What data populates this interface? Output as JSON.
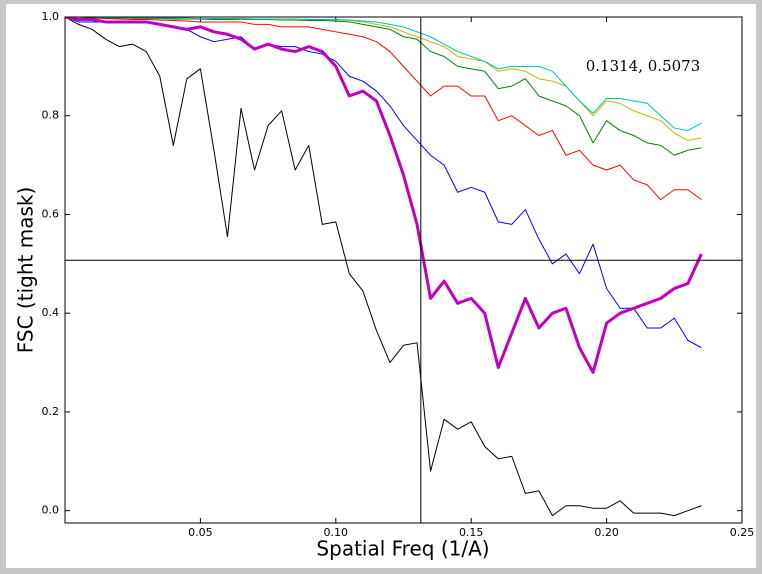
{
  "chart_data": {
    "type": "line",
    "xlabel": "Spatial Freq (1/A)",
    "ylabel": "FSC (tight mask)",
    "annotation": "0.1314, 0.5073",
    "crosshair": {
      "x": 0.1314,
      "y": 0.5073,
      "color": "#000000"
    },
    "xlim": [
      0,
      0.25
    ],
    "ylim": [
      -0.025,
      1.0
    ],
    "xticks": [
      0.05,
      {
        "value": 0.1,
        "label": "0.10"
      },
      0.15,
      {
        "value": 0.2,
        "label": "0.20"
      },
      0.25
    ],
    "yticks": [
      {
        "value": 0,
        "label": "0.0"
      },
      0.2,
      0.4,
      0.6,
      0.8,
      {
        "value": 1,
        "label": "1.0"
      }
    ],
    "grid": false,
    "x": [
      0,
      0.005,
      0.01,
      0.015,
      0.02,
      0.025,
      0.03,
      0.035,
      0.04,
      0.045,
      0.05,
      0.055,
      0.06,
      0.065,
      0.07,
      0.075,
      0.08,
      0.085,
      0.09,
      0.095,
      0.1,
      0.105,
      0.11,
      0.115,
      0.12,
      0.125,
      0.13,
      0.135,
      0.14,
      0.145,
      0.15,
      0.155,
      0.16,
      0.165,
      0.17,
      0.175,
      0.18,
      0.185,
      0.19,
      0.195,
      0.2,
      0.205,
      0.21,
      0.215,
      0.22,
      0.225,
      0.23,
      0.235
    ],
    "series": [
      {
        "color": "#000000",
        "line_width": 1,
        "values": [
          1.0,
          0.985,
          0.975,
          0.955,
          0.94,
          0.945,
          0.93,
          0.88,
          0.74,
          0.875,
          0.895,
          0.73,
          0.555,
          0.815,
          0.69,
          0.78,
          0.81,
          0.69,
          0.74,
          0.58,
          0.585,
          0.48,
          0.445,
          0.365,
          0.3,
          0.335,
          0.34,
          0.08,
          0.185,
          0.165,
          0.18,
          0.13,
          0.105,
          0.11,
          0.035,
          0.04,
          -0.01,
          0.01,
          0.01,
          0.005,
          0.005,
          0.02,
          -0.005,
          -0.005,
          -0.005,
          -0.01,
          0.0,
          0.01
        ]
      },
      {
        "color": "#0000ff",
        "line_width": 1,
        "values": [
          1.0,
          0.99,
          0.99,
          0.99,
          0.99,
          0.99,
          0.99,
          0.985,
          0.98,
          0.975,
          0.96,
          0.95,
          0.955,
          0.96,
          0.935,
          0.945,
          0.94,
          0.94,
          0.93,
          0.925,
          0.91,
          0.88,
          0.87,
          0.85,
          0.82,
          0.78,
          0.75,
          0.72,
          0.7,
          0.645,
          0.655,
          0.645,
          0.585,
          0.58,
          0.61,
          0.55,
          0.5,
          0.52,
          0.48,
          0.54,
          0.45,
          0.41,
          0.41,
          0.37,
          0.37,
          0.39,
          0.345,
          0.33
        ]
      },
      {
        "color": "#ff0000",
        "line_width": 1,
        "values": [
          1.0,
          1.0,
          0.998,
          0.997,
          0.996,
          0.995,
          0.995,
          0.994,
          0.993,
          0.992,
          0.99,
          0.99,
          0.99,
          0.99,
          0.985,
          0.985,
          0.98,
          0.98,
          0.98,
          0.975,
          0.97,
          0.965,
          0.96,
          0.95,
          0.93,
          0.9,
          0.87,
          0.84,
          0.86,
          0.86,
          0.84,
          0.84,
          0.79,
          0.8,
          0.78,
          0.76,
          0.77,
          0.72,
          0.73,
          0.7,
          0.69,
          0.7,
          0.67,
          0.66,
          0.63,
          0.65,
          0.65,
          0.63
        ]
      },
      {
        "color": "#008000",
        "line_width": 1,
        "values": [
          1.0,
          1.0,
          0.999,
          0.998,
          0.998,
          0.997,
          0.997,
          0.997,
          0.996,
          0.996,
          0.996,
          0.995,
          0.995,
          0.995,
          0.995,
          0.995,
          0.994,
          0.994,
          0.993,
          0.993,
          0.992,
          0.99,
          0.985,
          0.98,
          0.975,
          0.96,
          0.955,
          0.93,
          0.92,
          0.9,
          0.895,
          0.89,
          0.855,
          0.86,
          0.875,
          0.84,
          0.83,
          0.82,
          0.8,
          0.745,
          0.79,
          0.77,
          0.76,
          0.745,
          0.74,
          0.72,
          0.73,
          0.735
        ]
      },
      {
        "color": "#c8b400",
        "line_width": 1,
        "values": [
          1.0,
          1.0,
          1.0,
          0.999,
          0.999,
          0.998,
          0.998,
          0.998,
          0.998,
          0.997,
          0.997,
          0.997,
          0.997,
          0.996,
          0.996,
          0.996,
          0.995,
          0.995,
          0.995,
          0.995,
          0.994,
          0.993,
          0.99,
          0.985,
          0.98,
          0.97,
          0.96,
          0.95,
          0.94,
          0.92,
          0.915,
          0.91,
          0.89,
          0.895,
          0.89,
          0.875,
          0.87,
          0.86,
          0.83,
          0.8,
          0.83,
          0.825,
          0.81,
          0.8,
          0.79,
          0.765,
          0.75,
          0.755
        ]
      },
      {
        "color": "#00bfbf",
        "line_width": 1,
        "values": [
          1.0,
          1.0,
          1.0,
          0.999,
          0.999,
          0.999,
          0.998,
          0.998,
          0.998,
          0.998,
          0.997,
          0.997,
          0.997,
          0.997,
          0.996,
          0.996,
          0.996,
          0.996,
          0.995,
          0.995,
          0.995,
          0.994,
          0.992,
          0.99,
          0.985,
          0.98,
          0.97,
          0.96,
          0.945,
          0.93,
          0.92,
          0.91,
          0.895,
          0.9,
          0.9,
          0.9,
          0.89,
          0.86,
          0.83,
          0.805,
          0.835,
          0.835,
          0.83,
          0.825,
          0.8,
          0.775,
          0.77,
          0.785
        ]
      },
      {
        "color": "#bf00bf",
        "line_width": 3,
        "values": [
          1.0,
          0.995,
          0.995,
          0.99,
          0.99,
          0.99,
          0.99,
          0.985,
          0.98,
          0.975,
          0.98,
          0.97,
          0.965,
          0.955,
          0.935,
          0.945,
          0.935,
          0.93,
          0.94,
          0.93,
          0.9,
          0.84,
          0.85,
          0.83,
          0.76,
          0.68,
          0.58,
          0.43,
          0.465,
          0.42,
          0.43,
          0.4,
          0.29,
          0.36,
          0.43,
          0.37,
          0.4,
          0.41,
          0.33,
          0.28,
          0.38,
          0.4,
          0.41,
          0.42,
          0.43,
          0.45,
          0.46,
          0.52
        ]
      }
    ]
  }
}
